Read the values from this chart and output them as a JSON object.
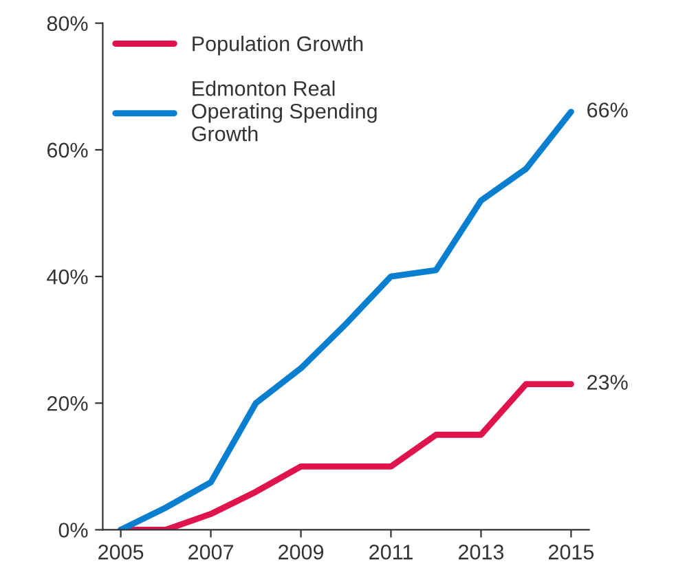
{
  "chart_data": {
    "type": "line",
    "x": [
      2005,
      2006,
      2007,
      2008,
      2009,
      2010,
      2011,
      2012,
      2013,
      2014,
      2015
    ],
    "series": [
      {
        "name": "Population Growth",
        "color": "#e0144c",
        "values": [
          0,
          0,
          2.5,
          6,
          10,
          10,
          10,
          15,
          15,
          23,
          23
        ]
      },
      {
        "name": "Edmonton Real Operating Spending Growth",
        "color": "#0a7fd0",
        "values": [
          0,
          3.5,
          7.5,
          20,
          25.5,
          32.5,
          40,
          41,
          52,
          57,
          66
        ]
      }
    ],
    "xlim": [
      2004.6,
      2015.4
    ],
    "xticks": [
      2005,
      2007,
      2009,
      2011,
      2013,
      2015
    ],
    "ylim": [
      0,
      80
    ],
    "yticks": [
      {
        "value": 0,
        "label": "0%"
      },
      {
        "value": 20,
        "label": "20%"
      },
      {
        "value": 40,
        "label": "40%"
      },
      {
        "value": 60,
        "label": "60%"
      },
      {
        "value": 80,
        "label": "80%"
      }
    ],
    "annotations": [
      {
        "text": "66%",
        "x": 2015,
        "y": 66
      },
      {
        "text": "23%",
        "x": 2015,
        "y": 23
      }
    ],
    "legend": "top left",
    "grid": false,
    "line_style": "solid",
    "marker": "none"
  }
}
